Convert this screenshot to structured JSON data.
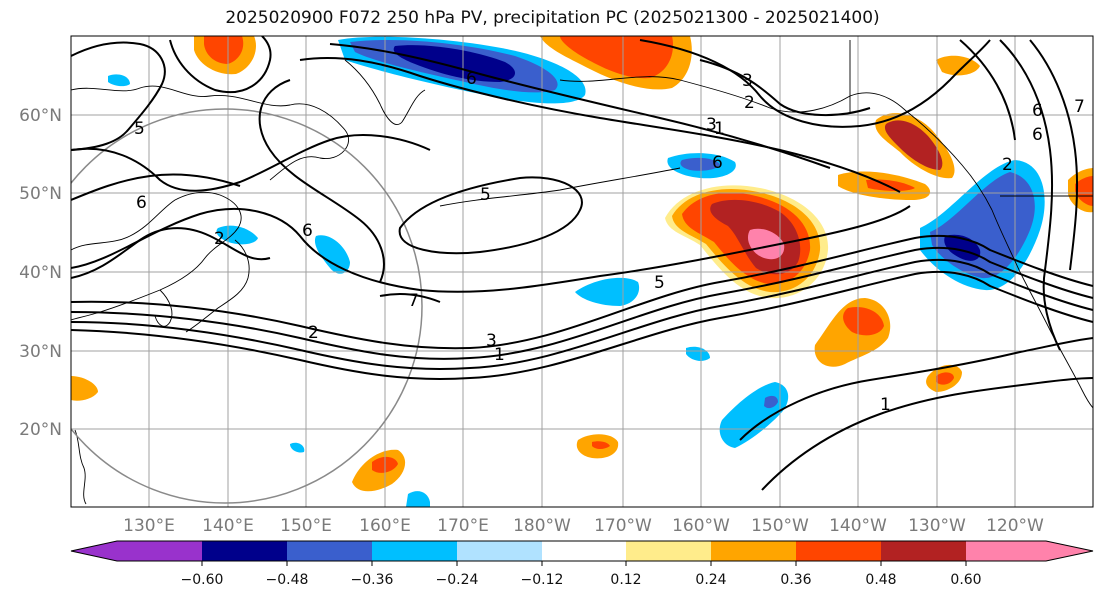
{
  "title": "2025020900 F072 250 hPa PV, precipitation PC (2025021300 - 2025021400)",
  "map": {
    "lat_labels": [
      "60°N",
      "50°N",
      "40°N",
      "30°N",
      "20°N"
    ],
    "lon_labels": [
      "130°E",
      "140°E",
      "150°E",
      "160°E",
      "170°E",
      "180°W",
      "170°W",
      "160°W",
      "150°W",
      "140°W",
      "130°W",
      "120°W"
    ],
    "contour_labels": [
      "6",
      "3",
      "2",
      "3",
      "1",
      "6",
      "6",
      "5",
      "6",
      "2",
      "6",
      "2",
      "7",
      "5",
      "2",
      "3",
      "1",
      "1",
      "6",
      "5",
      "7"
    ],
    "colors": {
      "neg_060": "#9932CC",
      "neg_048": "#00008B",
      "neg_036": "#3A5FCD",
      "neg_024": "#00BFFF",
      "neg_012": "#B0E2FF",
      "neutral": "#FFFFFF",
      "pos_012": "#FFEC8B",
      "pos_024": "#FFA500",
      "pos_036": "#FF4500",
      "pos_048": "#B22222",
      "pos_060": "#FF82AB"
    }
  },
  "colorbar": {
    "tick_labels": [
      "−0.60",
      "−0.48",
      "−0.36",
      "−0.24",
      "−0.12",
      "0.12",
      "0.24",
      "0.36",
      "0.48",
      "0.60"
    ],
    "segment_colors": [
      "#00008B",
      "#3A5FCD",
      "#00BFFF",
      "#B0E2FF",
      "#FFFFFF",
      "#FFEC8B",
      "#FFA500",
      "#FF4500",
      "#B22222"
    ],
    "under_color": "#9932CC",
    "over_color": "#FF82AB"
  }
}
